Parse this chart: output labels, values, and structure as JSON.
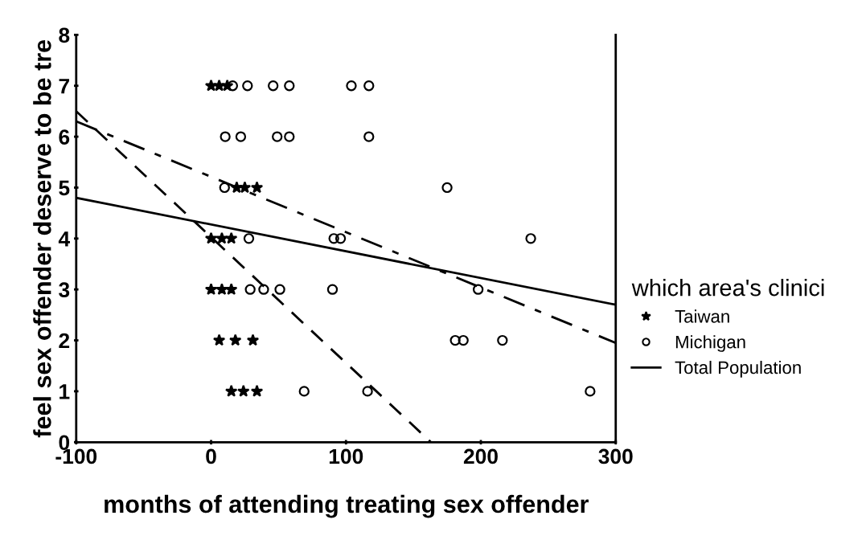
{
  "chart_data": {
    "type": "scatter",
    "xlabel": "months of attending treating sex offender",
    "ylabel": "feel sex offender deserve to be tre",
    "legend_title": "which area's clinici",
    "xlim": [
      -100,
      300
    ],
    "xticks": [
      -100,
      0,
      100,
      200,
      300
    ],
    "ylim": [
      0,
      8
    ],
    "yticks": [
      0,
      1,
      2,
      3,
      4,
      5,
      6,
      7,
      8
    ],
    "grid": false,
    "legend": "right",
    "series": [
      {
        "name": "Taiwan",
        "marker": "star",
        "color": "#000000",
        "x": [
          0,
          6,
          12,
          0,
          8,
          15,
          19,
          25,
          34,
          0,
          8,
          15,
          6,
          18,
          31,
          15,
          24,
          34
        ],
        "values": [
          7,
          7,
          7,
          4,
          4,
          4,
          5,
          5,
          5,
          3,
          3,
          3,
          2,
          2,
          2,
          1,
          1,
          1
        ]
      },
      {
        "name": "Michigan",
        "marker": "circle",
        "color": "#000000",
        "x": [
          16,
          27,
          46,
          58,
          104,
          117,
          10.5,
          22,
          49,
          58,
          117,
          10,
          175,
          28,
          91,
          96,
          237,
          29,
          39,
          51,
          90,
          198,
          181,
          187,
          216,
          69,
          116,
          281
        ],
        "values": [
          7,
          7,
          7,
          7,
          7,
          7,
          6,
          6,
          6,
          6,
          6,
          5,
          5,
          4,
          4,
          4,
          4,
          3,
          3,
          3,
          3,
          3,
          2,
          2,
          2,
          1,
          1,
          1
        ]
      },
      {
        "type": "line",
        "line_style": "dashed",
        "color": "#000000",
        "x": [
          -100,
          163
        ],
        "values": [
          6.5,
          0
        ]
      },
      {
        "type": "line",
        "line_style": "dashdot",
        "color": "#000000",
        "x": [
          -100,
          300
        ],
        "values": [
          6.3,
          1.95
        ]
      },
      {
        "name": "Total Population",
        "type": "line",
        "line_style": "solid",
        "color": "#000000",
        "x": [
          -100,
          300
        ],
        "values": [
          4.8,
          2.7
        ]
      }
    ]
  }
}
